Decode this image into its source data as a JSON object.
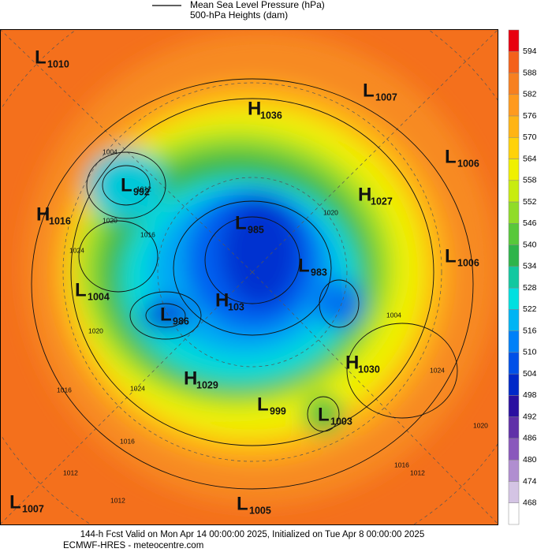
{
  "legend": {
    "lines": [
      "Mean Sea Level Pressure (hPa)",
      "500-hPa Heights (dam)"
    ]
  },
  "colorbar": {
    "ticks": [
      594,
      588,
      582,
      576,
      570,
      564,
      558,
      552,
      546,
      540,
      534,
      528,
      522,
      516,
      510,
      504,
      498,
      492,
      486,
      480,
      474,
      468
    ],
    "colors": [
      "#e8000e",
      "#f4611a",
      "#f78020",
      "#ff9a1e",
      "#ffb414",
      "#ffd20a",
      "#f0f000",
      "#c8ec10",
      "#90dc28",
      "#58c83a",
      "#2eb44a",
      "#12c8a0",
      "#00e0e0",
      "#00b4f4",
      "#0080f8",
      "#0050e8",
      "#0028c8",
      "#2a10a0",
      "#6030a8",
      "#8a58bc",
      "#b08ed0",
      "#d4c4e4",
      "#ffffff"
    ]
  },
  "centers": [
    {
      "kind": "L",
      "value": 1010
    },
    {
      "kind": "H",
      "value": 1036
    },
    {
      "kind": "L",
      "value": 1007
    },
    {
      "kind": "L",
      "value": 1006
    },
    {
      "kind": "L",
      "value": 992
    },
    {
      "kind": "H",
      "value": 1016
    },
    {
      "kind": "H",
      "value": 1027
    },
    {
      "kind": "L",
      "value": 985
    },
    {
      "kind": "L",
      "value": 1006
    },
    {
      "kind": "L",
      "value": 983
    },
    {
      "kind": "L",
      "value": 1004
    },
    {
      "kind": "H",
      "value": 103
    },
    {
      "kind": "L",
      "value": 986
    },
    {
      "kind": "H",
      "value": 1030
    },
    {
      "kind": "H",
      "value": 1029
    },
    {
      "kind": "L",
      "value": 999
    },
    {
      "kind": "L",
      "value": 1003
    },
    {
      "kind": "L",
      "value": 1007
    },
    {
      "kind": "L",
      "value": 1005
    }
  ],
  "contour_labels": [
    1004,
    1012,
    1020,
    1016,
    1024,
    1020,
    1016,
    1012,
    1012,
    1016,
    1024,
    1020,
    1024,
    1016,
    1012,
    1004,
    1020
  ],
  "footer": {
    "lines": [
      "144-h Fcst Valid on Mon Apr 14 00:00:00 2025, Initialized on Tue Apr  8 00:00:00 2025",
      "ECMWF-HRES - meteocentre.com"
    ]
  }
}
